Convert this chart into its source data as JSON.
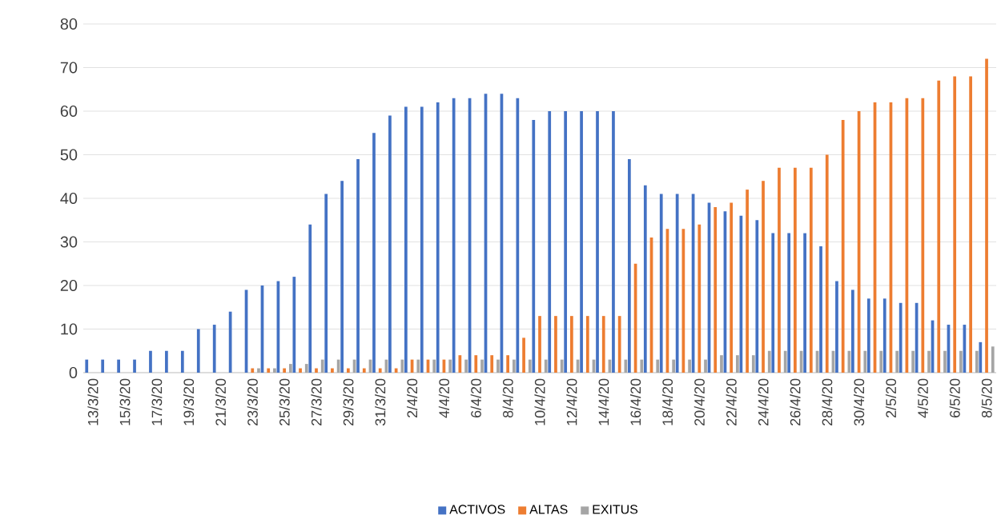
{
  "chart_data": {
    "type": "bar",
    "categories": [
      "13/3/20",
      null,
      "15/3/20",
      null,
      "17/3/20",
      null,
      "19/3/20",
      null,
      "21/3/20",
      null,
      "23/3/20",
      null,
      "25/3/20",
      null,
      "27/3/20",
      null,
      "29/3/20",
      null,
      "31/3/20",
      null,
      "2/4/20",
      null,
      "4/4/20",
      null,
      "6/4/20",
      null,
      "8/4/20",
      null,
      "10/4/20",
      null,
      "12/4/20",
      null,
      "14/4/20",
      null,
      "16/4/20",
      null,
      "18/4/20",
      null,
      "20/4/20",
      null,
      "22/4/20",
      null,
      "24/4/20",
      null,
      "26/4/20",
      null,
      "28/4/20",
      null,
      "30/4/20",
      null,
      "2/5/20",
      null,
      "4/5/20",
      null,
      "6/5/20",
      null,
      "8/5/20"
    ],
    "series": [
      {
        "name": "ACTIVOS",
        "color": "#4472c4",
        "values": [
          3,
          3,
          3,
          3,
          5,
          5,
          5,
          10,
          11,
          14,
          19,
          20,
          21,
          22,
          34,
          41,
          44,
          49,
          55,
          59,
          61,
          61,
          62,
          63,
          63,
          64,
          64,
          63,
          58,
          60,
          60,
          60,
          60,
          60,
          49,
          43,
          41,
          41,
          41,
          39,
          37,
          36,
          35,
          32,
          32,
          32,
          29,
          21,
          19,
          17,
          17,
          16,
          16,
          12,
          11,
          11,
          7
        ]
      },
      {
        "name": "ALTAS",
        "color": "#ed7d31",
        "values": [
          0,
          0,
          0,
          0,
          0,
          0,
          0,
          0,
          0,
          0,
          1,
          1,
          1,
          1,
          1,
          1,
          1,
          1,
          1,
          1,
          3,
          3,
          3,
          4,
          4,
          4,
          4,
          8,
          13,
          13,
          13,
          13,
          13,
          13,
          25,
          31,
          33,
          33,
          34,
          38,
          39,
          42,
          44,
          47,
          47,
          47,
          50,
          58,
          60,
          62,
          62,
          63,
          63,
          67,
          68,
          68,
          72
        ]
      },
      {
        "name": "EXITUS",
        "color": "#a5a5a5",
        "values": [
          0,
          0,
          0,
          0,
          0,
          0,
          0,
          0,
          0,
          0,
          1,
          1,
          2,
          2,
          3,
          3,
          3,
          3,
          3,
          3,
          3,
          3,
          3,
          3,
          3,
          3,
          3,
          3,
          3,
          3,
          3,
          3,
          3,
          3,
          3,
          3,
          3,
          3,
          3,
          4,
          4,
          4,
          5,
          5,
          5,
          5,
          5,
          5,
          5,
          5,
          5,
          5,
          5,
          5,
          5,
          5,
          6
        ]
      }
    ],
    "ylim": [
      0,
      80
    ],
    "yticks": [
      0,
      10,
      20,
      30,
      40,
      50,
      60,
      70,
      80
    ],
    "grid": "y",
    "legend": "bottom"
  }
}
